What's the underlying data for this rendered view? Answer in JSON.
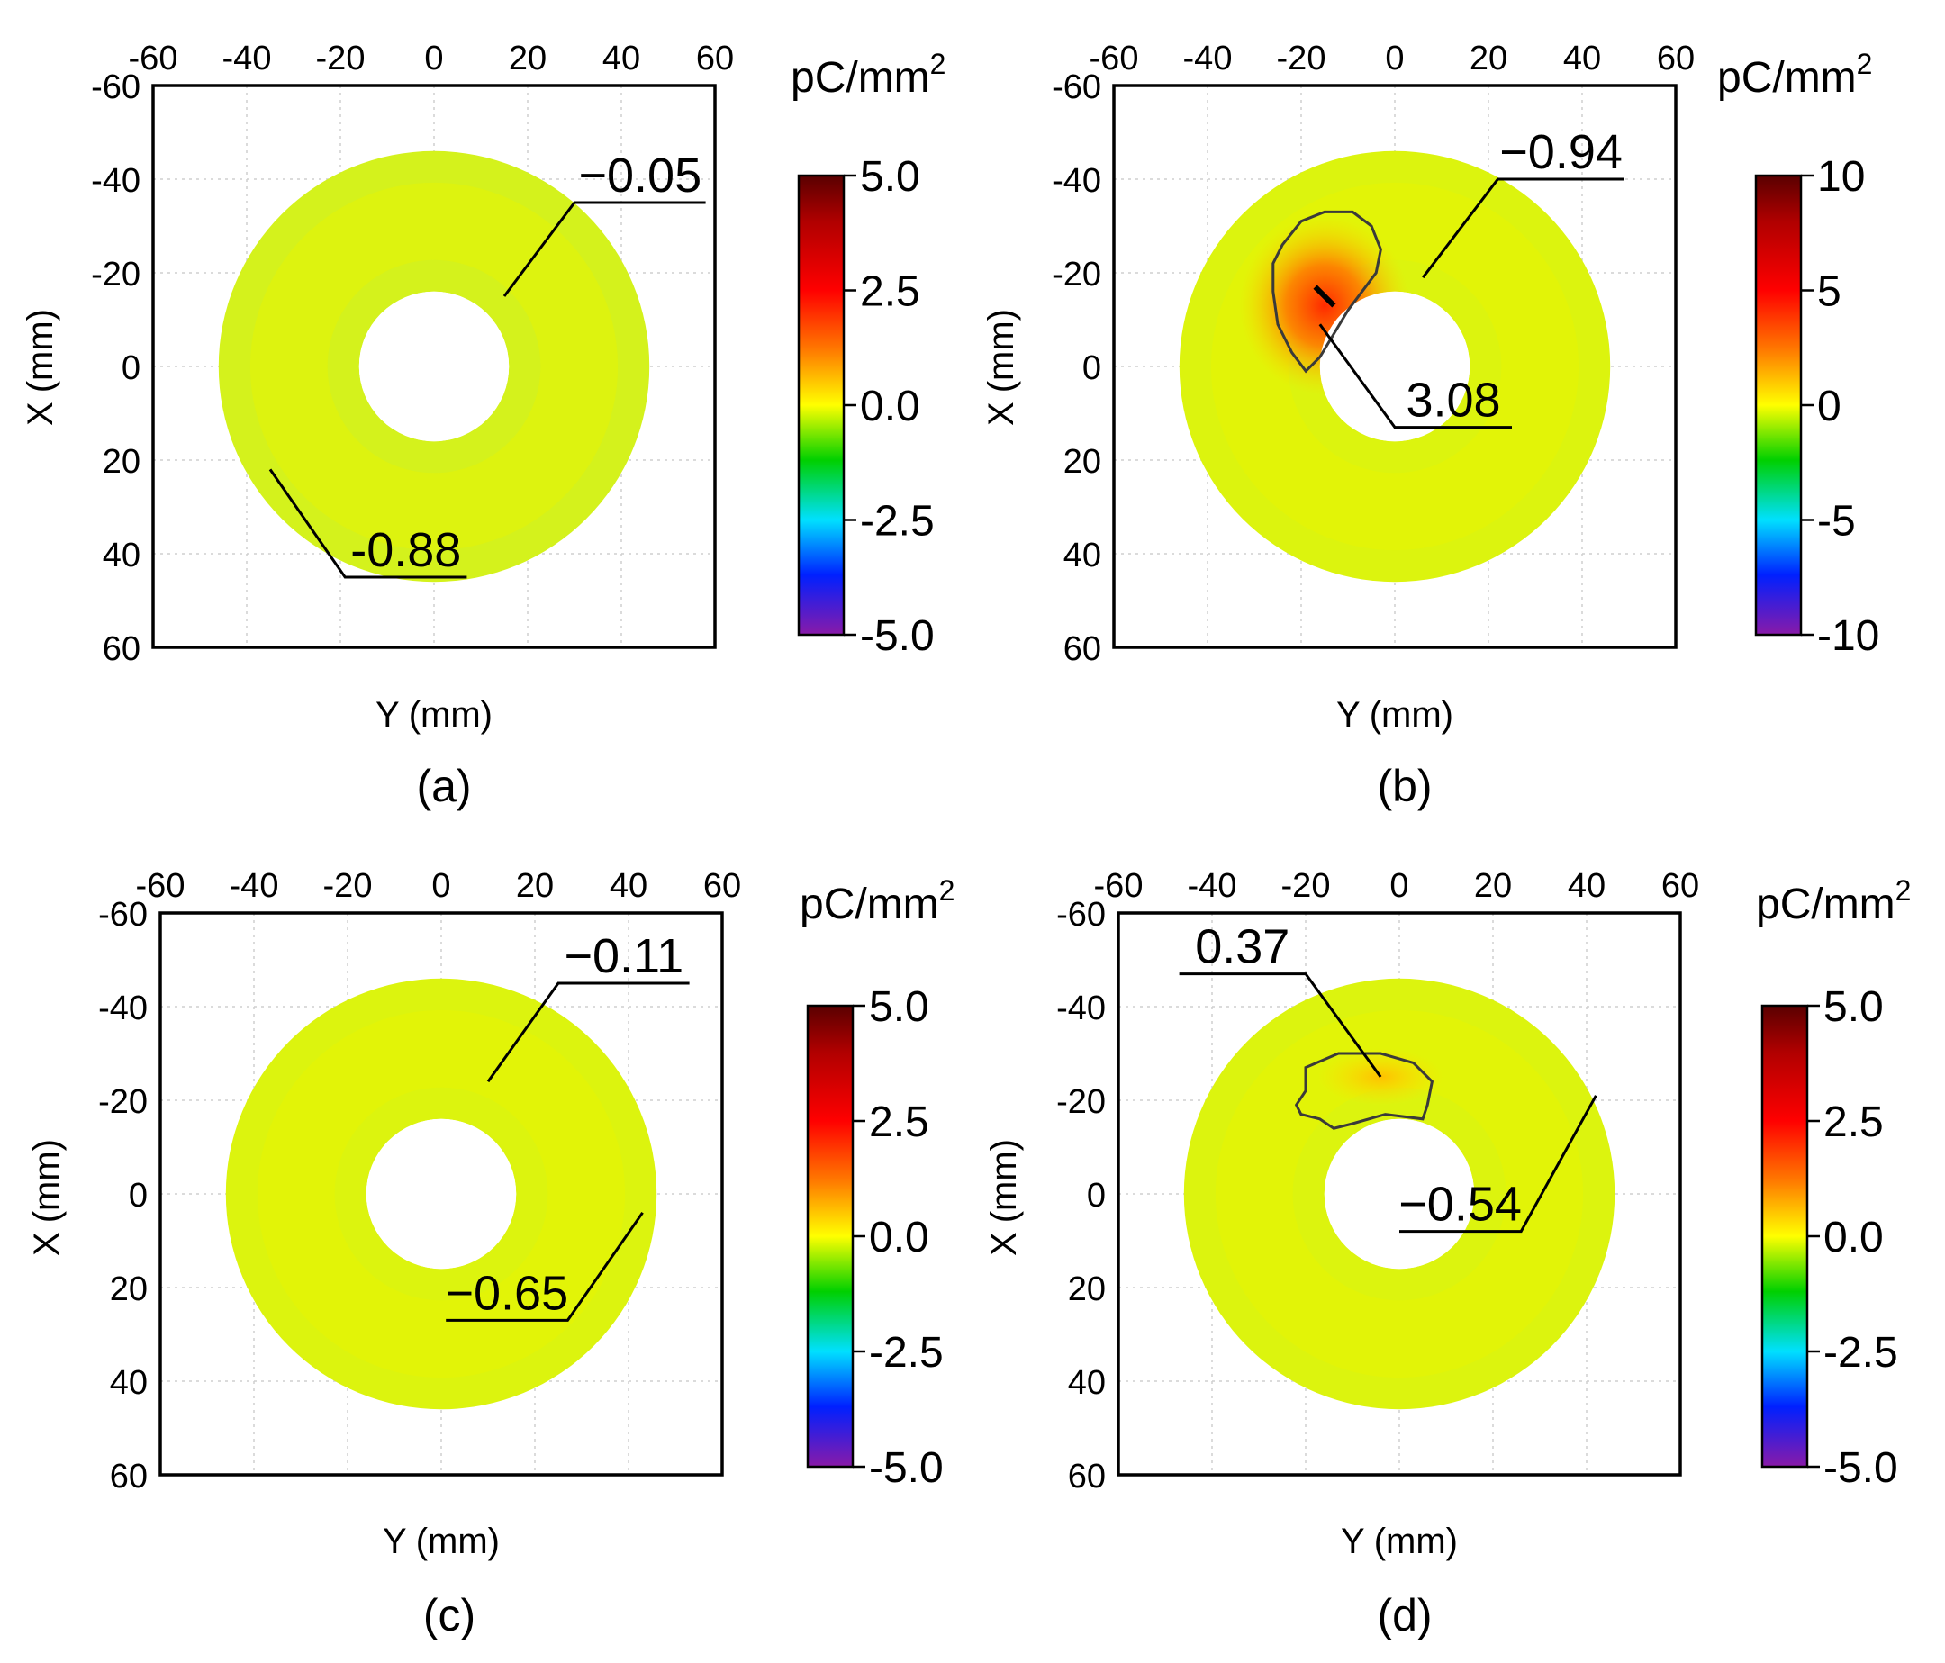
{
  "figure": {
    "x_axis_label": "Y",
    "x_axis_unit": "(mm)",
    "y_axis_label": "X",
    "y_axis_unit": "(mm)",
    "unit_label": "pC/mm",
    "unit_superscript": "2"
  },
  "chart_data": [
    {
      "panel": "(a)",
      "type": "heatmap",
      "title": "",
      "xlabel": "Y (mm)",
      "ylabel": "X (mm)",
      "xlim": [
        -60,
        60
      ],
      "ylim": [
        -60,
        60
      ],
      "x_ticks": [
        "-60",
        "-40",
        "-20",
        "0",
        "20",
        "40",
        "60"
      ],
      "y_ticks": [
        "-60",
        "-40",
        "-20",
        "0",
        "20",
        "40",
        "60"
      ],
      "annulus": {
        "outer_radius_mm": 46,
        "inner_radius_mm": 16
      },
      "colorbar": {
        "unit": "pC/mm2",
        "range": [
          -5,
          5
        ],
        "ticks": [
          "5.0",
          "2.5",
          "0.0",
          "-2.5",
          "-5.0"
        ]
      },
      "annotations": [
        {
          "label": "−0.05",
          "point": [
            15,
            -15
          ],
          "elbow": [
            30,
            -35
          ],
          "end": [
            58,
            -35
          ]
        },
        {
          "label": "-0.88",
          "point": [
            -35,
            22
          ],
          "elbow": [
            -19,
            45
          ],
          "end": [
            7,
            45
          ]
        }
      ],
      "contour": null
    },
    {
      "panel": "(b)",
      "type": "heatmap",
      "title": "",
      "xlabel": "Y (mm)",
      "ylabel": "X (mm)",
      "xlim": [
        -60,
        60
      ],
      "ylim": [
        -60,
        60
      ],
      "x_ticks": [
        "-60",
        "-40",
        "-20",
        "0",
        "20",
        "40",
        "60"
      ],
      "y_ticks": [
        "-60",
        "-40",
        "-20",
        "0",
        "20",
        "40",
        "60"
      ],
      "annulus": {
        "outer_radius_mm": 46,
        "inner_radius_mm": 16
      },
      "colorbar": {
        "unit": "pC/mm2",
        "range": [
          -10,
          10
        ],
        "ticks": [
          "10",
          "5",
          "0",
          "-5",
          "-10"
        ]
      },
      "annotations": [
        {
          "label": "−0.94",
          "point": [
            6,
            -19
          ],
          "elbow": [
            22,
            -40
          ],
          "end": [
            49,
            -40
          ]
        },
        {
          "label": "3.08",
          "point": [
            -16,
            -9
          ],
          "elbow": [
            0,
            13
          ],
          "end": [
            25,
            13
          ]
        }
      ],
      "contour": {
        "value": 0,
        "points": [
          [
            -24,
            -26
          ],
          [
            -20,
            -31
          ],
          [
            -15,
            -33
          ],
          [
            -9,
            -33
          ],
          [
            -5,
            -30
          ],
          [
            -3,
            -25
          ],
          [
            -4,
            -20
          ],
          [
            -7,
            -16
          ],
          [
            -10,
            -12
          ],
          [
            -13,
            -7
          ],
          [
            -16,
            -2
          ],
          [
            -19,
            1
          ],
          [
            -22,
            -3
          ],
          [
            -25,
            -9
          ],
          [
            -26,
            -16
          ],
          [
            -26,
            -22
          ]
        ]
      },
      "hotspot": {
        "center": [
          -15,
          -13
        ],
        "peak_value": 3.08
      }
    },
    {
      "panel": "(c)",
      "type": "heatmap",
      "title": "",
      "xlabel": "Y (mm)",
      "ylabel": "X (mm)",
      "xlim": [
        -60,
        60
      ],
      "ylim": [
        -60,
        60
      ],
      "x_ticks": [
        "-60",
        "-40",
        "-20",
        "0",
        "20",
        "40",
        "60"
      ],
      "y_ticks": [
        "-60",
        "-40",
        "-20",
        "0",
        "20",
        "40",
        "60"
      ],
      "annulus": {
        "outer_radius_mm": 46,
        "inner_radius_mm": 16
      },
      "colorbar": {
        "unit": "pC/mm2",
        "range": [
          -5,
          5
        ],
        "ticks": [
          "5.0",
          "2.5",
          "0.0",
          "-2.5",
          "-5.0"
        ]
      },
      "annotations": [
        {
          "label": "−0.11",
          "point": [
            10,
            -24
          ],
          "elbow": [
            25,
            -45
          ],
          "end": [
            53,
            -45
          ]
        },
        {
          "label": "−0.65",
          "point": [
            43,
            4
          ],
          "elbow": [
            27,
            27
          ],
          "end": [
            1,
            27
          ]
        }
      ],
      "contour": null
    },
    {
      "panel": "(d)",
      "type": "heatmap",
      "title": "",
      "xlabel": "Y (mm)",
      "ylabel": "X (mm)",
      "xlim": [
        -60,
        60
      ],
      "ylim": [
        -60,
        60
      ],
      "x_ticks": [
        "-60",
        "-40",
        "-20",
        "0",
        "20",
        "40",
        "60"
      ],
      "y_ticks": [
        "-60",
        "-40",
        "-20",
        "0",
        "20",
        "40",
        "60"
      ],
      "annulus": {
        "outer_radius_mm": 46,
        "inner_radius_mm": 16
      },
      "colorbar": {
        "unit": "pC/mm2",
        "range": [
          -5,
          5
        ],
        "ticks": [
          "5.0",
          "2.5",
          "0.0",
          "-2.5",
          "-5.0"
        ]
      },
      "annotations": [
        {
          "label": "0.37",
          "point": [
            -4,
            -25
          ],
          "elbow": [
            -20,
            -47
          ],
          "end": [
            -47,
            -47
          ]
        },
        {
          "label": "−0.54",
          "point": [
            42,
            -21
          ],
          "elbow": [
            26,
            8
          ],
          "end": [
            0,
            8
          ]
        }
      ],
      "contour": {
        "value": 0,
        "points": [
          [
            -20,
            -27
          ],
          [
            -13,
            -30
          ],
          [
            -4,
            -30
          ],
          [
            3,
            -28
          ],
          [
            7,
            -24
          ],
          [
            6,
            -19
          ],
          [
            5,
            -16
          ],
          [
            -3,
            -17
          ],
          [
            -10,
            -15
          ],
          [
            -14,
            -14
          ],
          [
            -17,
            -16
          ],
          [
            -21,
            -17
          ],
          [
            -22,
            -19
          ],
          [
            -20,
            -22
          ]
        ]
      },
      "hotspot": {
        "center": [
          -4,
          -25
        ],
        "peak_value": 0.37
      }
    }
  ]
}
